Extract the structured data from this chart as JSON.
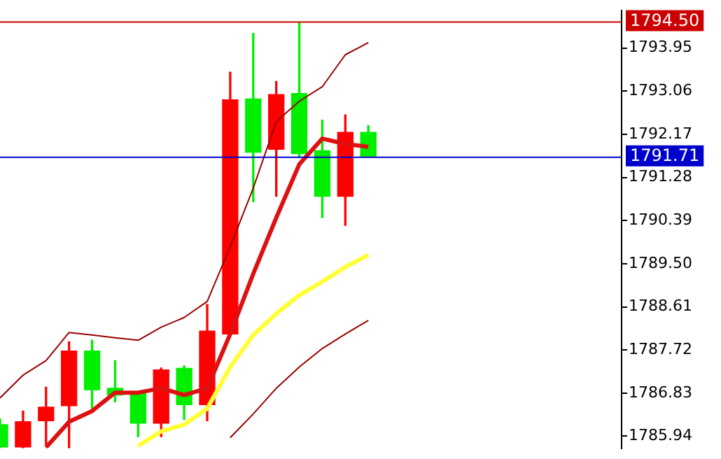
{
  "chart_data": {
    "type": "candlestick",
    "categories": [
      null,
      null,
      null,
      null,
      null,
      null,
      null,
      null,
      null,
      null,
      null,
      null,
      null,
      null,
      null,
      null,
      null,
      null,
      null,
      null,
      null,
      null,
      null,
      null,
      null,
      null,
      null,
      null
    ],
    "ohlc": [
      [
        1786.18,
        1786.3,
        1785.7,
        1785.72
      ],
      [
        1785.72,
        1786.46,
        1785.7,
        1786.24
      ],
      [
        1786.26,
        1786.95,
        1785.77,
        1786.54
      ],
      [
        1786.57,
        1787.89,
        1785.7,
        1787.7
      ],
      [
        1787.7,
        1787.92,
        1786.51,
        1786.9
      ],
      [
        1786.93,
        1787.5,
        1786.65,
        1786.79
      ],
      [
        1786.82,
        1786.85,
        1785.93,
        1786.21
      ],
      [
        1786.21,
        1787.35,
        1785.93,
        1787.31
      ],
      [
        1787.34,
        1787.39,
        1786.29,
        1786.59
      ],
      [
        1786.59,
        1788.66,
        1786.26,
        1788.11
      ],
      [
        1788.05,
        1793.45,
        1788.05,
        1792.88
      ],
      [
        1792.9,
        1794.25,
        1790.78,
        1791.8
      ],
      [
        1791.86,
        1793.26,
        1790.89,
        1792.99
      ],
      [
        1793.01,
        1794.47,
        1791.69,
        1791.77
      ],
      [
        1791.83,
        1792.46,
        1790.45,
        1790.89
      ],
      [
        1790.89,
        1792.57,
        1790.29,
        1792.21
      ],
      [
        1792.21,
        1792.35,
        1791.7,
        1791.72
      ],
      null,
      null,
      null,
      null,
      null,
      null,
      null,
      null,
      null,
      null,
      null
    ],
    "colors": [
      "#00ee00",
      "#ff0000",
      "#ff0000",
      "#ff0000",
      "#00ee00",
      "#00ee00",
      "#00ee00",
      "#ff0000",
      "#00ee00",
      "#ff0000",
      "#ff0000",
      "#00ee00",
      "#ff0000",
      "#00ee00",
      "#00ee00",
      "#ff0000",
      "#00ee00",
      null,
      null,
      null,
      null,
      null,
      null,
      null,
      null,
      null,
      null,
      null
    ],
    "series": [
      {
        "type": "line",
        "color": "#dd1111",
        "values": [
          null,
          null,
          1785.71,
          1786.24,
          1786.46,
          1786.84,
          1786.84,
          1786.93,
          1786.79,
          1786.93,
          1788.05,
          1789.29,
          1790.45,
          1791.55,
          1792.08,
          1791.97,
          1791.91,
          null,
          null,
          null,
          null,
          null,
          null,
          null,
          null,
          null,
          null,
          null
        ]
      },
      {
        "type": "line",
        "color": "#ffff33",
        "values": [
          null,
          null,
          null,
          null,
          null,
          null,
          1785.74,
          1786.04,
          1786.18,
          1786.51,
          1787.37,
          1788.03,
          1788.47,
          1788.85,
          1789.13,
          1789.43,
          1789.68,
          null,
          null,
          null,
          null,
          null,
          null,
          null,
          null,
          null,
          null,
          null
        ]
      },
      {
        "type": "line",
        "color": "#990000",
        "values": [
          1786.73,
          1787.2,
          1787.5,
          1788.08,
          1788.03,
          1787.97,
          1787.92,
          1788.19,
          1788.39,
          1788.72,
          1789.85,
          1791.06,
          1792.43,
          1792.85,
          1793.15,
          1793.81,
          1794.06,
          null,
          null,
          null,
          null,
          null,
          null,
          null,
          null,
          null,
          null,
          null
        ]
      },
      {
        "type": "line",
        "color": "#990000",
        "values": [
          null,
          null,
          null,
          null,
          null,
          null,
          null,
          null,
          null,
          null,
          1785.91,
          1786.4,
          1786.93,
          1787.37,
          1787.75,
          1788.05,
          1788.33,
          null,
          null,
          null,
          null,
          null,
          null,
          null,
          null,
          null,
          null,
          null
        ]
      }
    ],
    "ylim": [
      1785.69,
      1794.72
    ],
    "yticks": [
      1785.94,
      1786.83,
      1787.72,
      1788.61,
      {
        "value": 1789.5,
        "label": "1789.50"
      },
      1790.39,
      1791.28,
      1792.17,
      1793.06,
      1793.95
    ],
    "ref_lines": [
      {
        "axis": "y",
        "value": 1794.5,
        "label": "1794.50",
        "color": "#cc0000"
      },
      {
        "axis": "y",
        "value": 1791.71,
        "label": "1791.71",
        "color": "#0000cc"
      }
    ],
    "tick_labels": "y",
    "grid": false,
    "legend": false
  }
}
